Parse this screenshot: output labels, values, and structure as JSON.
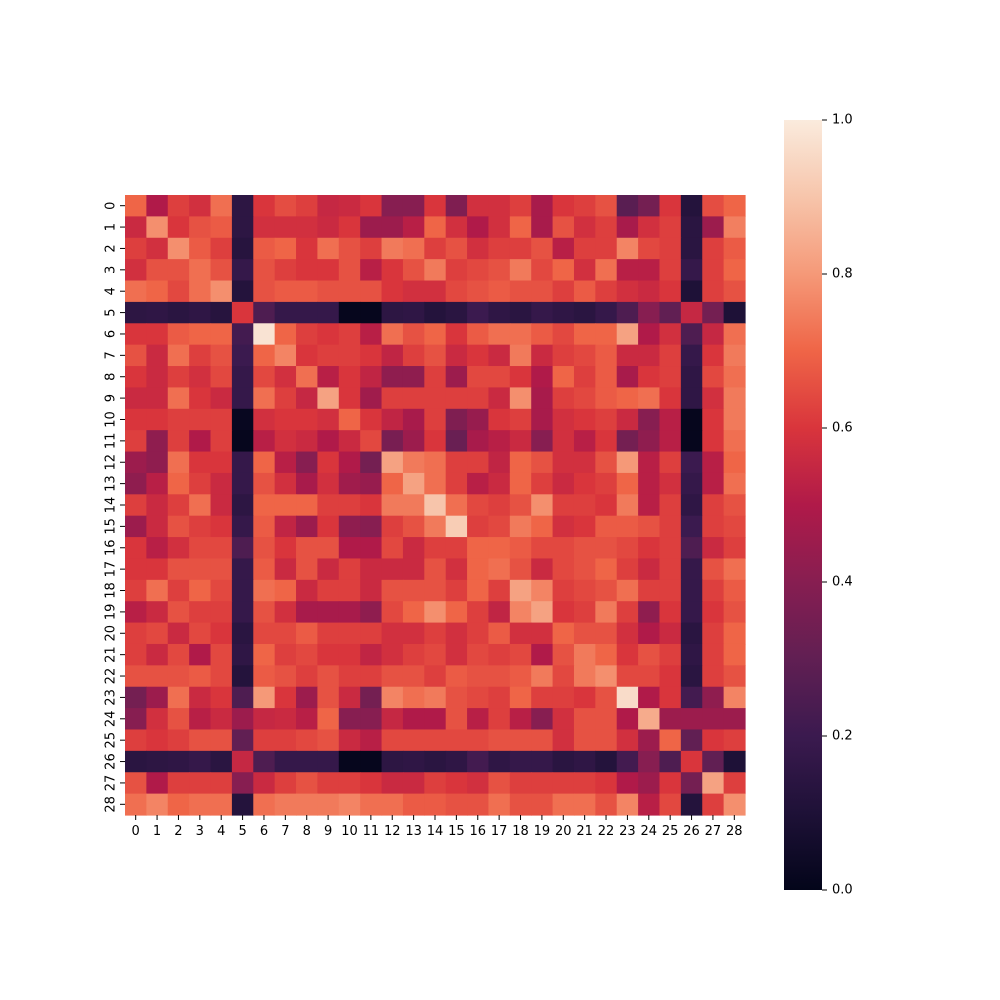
{
  "chart_data": {
    "type": "heatmap",
    "title": "",
    "xlabel": "",
    "ylabel": "",
    "x_labels": [
      "0",
      "1",
      "2",
      "3",
      "4",
      "5",
      "6",
      "7",
      "8",
      "9",
      "10",
      "11",
      "12",
      "13",
      "14",
      "15",
      "16",
      "17",
      "18",
      "19",
      "20",
      "21",
      "22",
      "23",
      "24",
      "25",
      "26",
      "27",
      "28"
    ],
    "y_labels": [
      "0",
      "1",
      "2",
      "3",
      "4",
      "5",
      "6",
      "7",
      "8",
      "9",
      "10",
      "11",
      "12",
      "13",
      "14",
      "15",
      "16",
      "17",
      "18",
      "19",
      "20",
      "21",
      "22",
      "23",
      "24",
      "25",
      "26",
      "27",
      "28"
    ],
    "colorbar": {
      "range": [
        0.0,
        1.0
      ],
      "ticks": [
        0.0,
        0.2,
        0.4,
        0.6,
        0.8,
        1.0
      ],
      "tick_labels": [
        "0.0",
        "0.2",
        "0.4",
        "0.6",
        "0.8",
        "1.0"
      ]
    },
    "colormap": "rocket",
    "values": [
      [
        0.7,
        0.5,
        0.62,
        0.58,
        0.72,
        0.15,
        0.6,
        0.65,
        0.62,
        0.55,
        0.56,
        0.6,
        0.4,
        0.4,
        0.6,
        0.38,
        0.58,
        0.58,
        0.62,
        0.48,
        0.6,
        0.62,
        0.66,
        0.28,
        0.35,
        0.6,
        0.12,
        0.65,
        0.7
      ],
      [
        0.56,
        0.78,
        0.6,
        0.66,
        0.68,
        0.15,
        0.58,
        0.58,
        0.58,
        0.56,
        0.6,
        0.45,
        0.45,
        0.52,
        0.7,
        0.58,
        0.5,
        0.58,
        0.7,
        0.48,
        0.66,
        0.58,
        0.62,
        0.48,
        0.58,
        0.62,
        0.14,
        0.45,
        0.75
      ],
      [
        0.62,
        0.58,
        0.78,
        0.68,
        0.62,
        0.13,
        0.68,
        0.7,
        0.6,
        0.72,
        0.66,
        0.62,
        0.74,
        0.72,
        0.62,
        0.66,
        0.58,
        0.62,
        0.62,
        0.66,
        0.52,
        0.62,
        0.62,
        0.76,
        0.64,
        0.62,
        0.14,
        0.62,
        0.68
      ],
      [
        0.58,
        0.66,
        0.66,
        0.72,
        0.66,
        0.18,
        0.66,
        0.62,
        0.6,
        0.6,
        0.66,
        0.52,
        0.6,
        0.66,
        0.74,
        0.62,
        0.64,
        0.66,
        0.74,
        0.64,
        0.7,
        0.58,
        0.72,
        0.52,
        0.52,
        0.62,
        0.18,
        0.62,
        0.7
      ],
      [
        0.72,
        0.7,
        0.64,
        0.72,
        0.78,
        0.12,
        0.66,
        0.68,
        0.68,
        0.66,
        0.66,
        0.66,
        0.6,
        0.58,
        0.58,
        0.64,
        0.66,
        0.68,
        0.66,
        0.66,
        0.62,
        0.68,
        0.62,
        0.58,
        0.56,
        0.6,
        0.1,
        0.62,
        0.66
      ],
      [
        0.15,
        0.16,
        0.14,
        0.16,
        0.13,
        0.6,
        0.25,
        0.18,
        0.18,
        0.18,
        0.01,
        0.01,
        0.15,
        0.16,
        0.12,
        0.14,
        0.2,
        0.16,
        0.14,
        0.18,
        0.16,
        0.14,
        0.18,
        0.25,
        0.4,
        0.3,
        0.55,
        0.35,
        0.1
      ],
      [
        0.6,
        0.6,
        0.68,
        0.7,
        0.7,
        0.22,
        0.98,
        0.7,
        0.62,
        0.6,
        0.62,
        0.52,
        0.72,
        0.66,
        0.7,
        0.6,
        0.68,
        0.72,
        0.72,
        0.68,
        0.64,
        0.7,
        0.7,
        0.82,
        0.5,
        0.58,
        0.25,
        0.55,
        0.72
      ],
      [
        0.66,
        0.56,
        0.72,
        0.62,
        0.66,
        0.2,
        0.7,
        0.76,
        0.6,
        0.62,
        0.62,
        0.6,
        0.54,
        0.62,
        0.66,
        0.56,
        0.6,
        0.56,
        0.74,
        0.56,
        0.62,
        0.64,
        0.68,
        0.56,
        0.56,
        0.62,
        0.18,
        0.6,
        0.74
      ],
      [
        0.6,
        0.56,
        0.62,
        0.58,
        0.64,
        0.18,
        0.64,
        0.58,
        0.72,
        0.52,
        0.6,
        0.54,
        0.42,
        0.42,
        0.62,
        0.45,
        0.64,
        0.64,
        0.6,
        0.5,
        0.7,
        0.62,
        0.68,
        0.48,
        0.6,
        0.62,
        0.16,
        0.64,
        0.72
      ],
      [
        0.56,
        0.56,
        0.72,
        0.6,
        0.56,
        0.18,
        0.72,
        0.62,
        0.55,
        0.82,
        0.6,
        0.46,
        0.62,
        0.62,
        0.62,
        0.62,
        0.62,
        0.56,
        0.78,
        0.48,
        0.62,
        0.64,
        0.68,
        0.7,
        0.72,
        0.6,
        0.16,
        0.58,
        0.74
      ],
      [
        0.6,
        0.6,
        0.62,
        0.62,
        0.62,
        0.02,
        0.58,
        0.6,
        0.6,
        0.58,
        0.7,
        0.6,
        0.54,
        0.48,
        0.62,
        0.38,
        0.44,
        0.6,
        0.62,
        0.48,
        0.58,
        0.6,
        0.62,
        0.56,
        0.4,
        0.52,
        0.01,
        0.6,
        0.74
      ],
      [
        0.62,
        0.42,
        0.62,
        0.5,
        0.62,
        0.01,
        0.52,
        0.58,
        0.56,
        0.5,
        0.56,
        0.64,
        0.36,
        0.45,
        0.6,
        0.32,
        0.48,
        0.52,
        0.56,
        0.4,
        0.58,
        0.52,
        0.6,
        0.35,
        0.42,
        0.52,
        0.01,
        0.6,
        0.72
      ],
      [
        0.45,
        0.42,
        0.72,
        0.6,
        0.6,
        0.18,
        0.7,
        0.52,
        0.4,
        0.6,
        0.5,
        0.35,
        0.82,
        0.74,
        0.72,
        0.62,
        0.62,
        0.54,
        0.7,
        0.66,
        0.58,
        0.58,
        0.66,
        0.8,
        0.52,
        0.62,
        0.2,
        0.52,
        0.7
      ],
      [
        0.42,
        0.52,
        0.7,
        0.62,
        0.56,
        0.18,
        0.66,
        0.58,
        0.48,
        0.58,
        0.46,
        0.44,
        0.7,
        0.82,
        0.72,
        0.62,
        0.52,
        0.56,
        0.7,
        0.62,
        0.56,
        0.6,
        0.62,
        0.7,
        0.52,
        0.58,
        0.18,
        0.52,
        0.72
      ],
      [
        0.62,
        0.56,
        0.62,
        0.72,
        0.56,
        0.15,
        0.7,
        0.7,
        0.7,
        0.62,
        0.62,
        0.6,
        0.74,
        0.74,
        0.9,
        0.72,
        0.64,
        0.62,
        0.66,
        0.78,
        0.62,
        0.62,
        0.6,
        0.74,
        0.52,
        0.62,
        0.16,
        0.62,
        0.66
      ],
      [
        0.45,
        0.56,
        0.66,
        0.62,
        0.6,
        0.18,
        0.68,
        0.54,
        0.45,
        0.6,
        0.42,
        0.4,
        0.62,
        0.66,
        0.74,
        0.92,
        0.62,
        0.64,
        0.74,
        0.7,
        0.58,
        0.6,
        0.68,
        0.68,
        0.66,
        0.62,
        0.2,
        0.62,
        0.64
      ],
      [
        0.6,
        0.52,
        0.58,
        0.64,
        0.64,
        0.25,
        0.66,
        0.6,
        0.66,
        0.66,
        0.5,
        0.5,
        0.64,
        0.56,
        0.62,
        0.62,
        0.7,
        0.7,
        0.68,
        0.64,
        0.64,
        0.66,
        0.66,
        0.64,
        0.6,
        0.62,
        0.25,
        0.56,
        0.62
      ],
      [
        0.6,
        0.6,
        0.66,
        0.66,
        0.66,
        0.18,
        0.68,
        0.56,
        0.66,
        0.56,
        0.62,
        0.56,
        0.56,
        0.56,
        0.66,
        0.58,
        0.7,
        0.72,
        0.66,
        0.56,
        0.64,
        0.66,
        0.7,
        0.62,
        0.56,
        0.62,
        0.18,
        0.66,
        0.72
      ],
      [
        0.62,
        0.72,
        0.62,
        0.7,
        0.64,
        0.18,
        0.72,
        0.7,
        0.56,
        0.62,
        0.62,
        0.56,
        0.66,
        0.66,
        0.66,
        0.62,
        0.7,
        0.62,
        0.82,
        0.76,
        0.62,
        0.64,
        0.66,
        0.72,
        0.62,
        0.62,
        0.18,
        0.62,
        0.68
      ],
      [
        0.52,
        0.56,
        0.66,
        0.62,
        0.62,
        0.18,
        0.66,
        0.58,
        0.48,
        0.48,
        0.48,
        0.42,
        0.64,
        0.7,
        0.78,
        0.7,
        0.62,
        0.54,
        0.76,
        0.82,
        0.6,
        0.62,
        0.74,
        0.62,
        0.42,
        0.6,
        0.18,
        0.6,
        0.66
      ],
      [
        0.62,
        0.64,
        0.56,
        0.64,
        0.6,
        0.14,
        0.64,
        0.64,
        0.68,
        0.62,
        0.62,
        0.62,
        0.58,
        0.58,
        0.62,
        0.58,
        0.62,
        0.68,
        0.58,
        0.58,
        0.7,
        0.66,
        0.66,
        0.58,
        0.5,
        0.56,
        0.14,
        0.62,
        0.7
      ],
      [
        0.62,
        0.56,
        0.64,
        0.5,
        0.64,
        0.16,
        0.7,
        0.62,
        0.64,
        0.6,
        0.6,
        0.54,
        0.58,
        0.62,
        0.64,
        0.58,
        0.64,
        0.62,
        0.64,
        0.5,
        0.66,
        0.74,
        0.7,
        0.6,
        0.66,
        0.62,
        0.16,
        0.62,
        0.7
      ],
      [
        0.66,
        0.66,
        0.66,
        0.68,
        0.64,
        0.12,
        0.68,
        0.66,
        0.62,
        0.66,
        0.62,
        0.62,
        0.66,
        0.66,
        0.62,
        0.68,
        0.66,
        0.66,
        0.68,
        0.74,
        0.64,
        0.74,
        0.78,
        0.64,
        0.64,
        0.6,
        0.14,
        0.62,
        0.66
      ],
      [
        0.35,
        0.45,
        0.72,
        0.56,
        0.6,
        0.25,
        0.8,
        0.6,
        0.45,
        0.66,
        0.56,
        0.35,
        0.76,
        0.72,
        0.74,
        0.66,
        0.64,
        0.62,
        0.7,
        0.62,
        0.62,
        0.6,
        0.66,
        0.96,
        0.5,
        0.6,
        0.22,
        0.42,
        0.76
      ],
      [
        0.4,
        0.58,
        0.66,
        0.52,
        0.56,
        0.45,
        0.55,
        0.56,
        0.52,
        0.7,
        0.4,
        0.4,
        0.55,
        0.5,
        0.5,
        0.66,
        0.52,
        0.62,
        0.52,
        0.4,
        0.58,
        0.66,
        0.66,
        0.5,
        0.84,
        0.45,
        0.45,
        0.45,
        0.45
      ],
      [
        0.62,
        0.6,
        0.62,
        0.66,
        0.66,
        0.3,
        0.62,
        0.62,
        0.64,
        0.66,
        0.56,
        0.52,
        0.64,
        0.64,
        0.64,
        0.64,
        0.64,
        0.66,
        0.66,
        0.66,
        0.58,
        0.66,
        0.66,
        0.58,
        0.45,
        0.7,
        0.3,
        0.6,
        0.62
      ],
      [
        0.14,
        0.15,
        0.16,
        0.18,
        0.14,
        0.55,
        0.25,
        0.18,
        0.18,
        0.18,
        0.01,
        0.01,
        0.15,
        0.16,
        0.14,
        0.16,
        0.22,
        0.16,
        0.18,
        0.18,
        0.14,
        0.16,
        0.12,
        0.22,
        0.4,
        0.25,
        0.6,
        0.3,
        0.1
      ],
      [
        0.66,
        0.5,
        0.62,
        0.62,
        0.62,
        0.4,
        0.56,
        0.62,
        0.66,
        0.62,
        0.62,
        0.6,
        0.56,
        0.56,
        0.62,
        0.6,
        0.58,
        0.66,
        0.62,
        0.62,
        0.62,
        0.62,
        0.6,
        0.5,
        0.45,
        0.6,
        0.35,
        0.82,
        0.62
      ],
      [
        0.72,
        0.76,
        0.7,
        0.72,
        0.72,
        0.12,
        0.72,
        0.74,
        0.74,
        0.74,
        0.76,
        0.72,
        0.72,
        0.68,
        0.68,
        0.66,
        0.66,
        0.72,
        0.66,
        0.66,
        0.72,
        0.72,
        0.66,
        0.76,
        0.52,
        0.64,
        0.12,
        0.62,
        0.78
      ]
    ]
  }
}
